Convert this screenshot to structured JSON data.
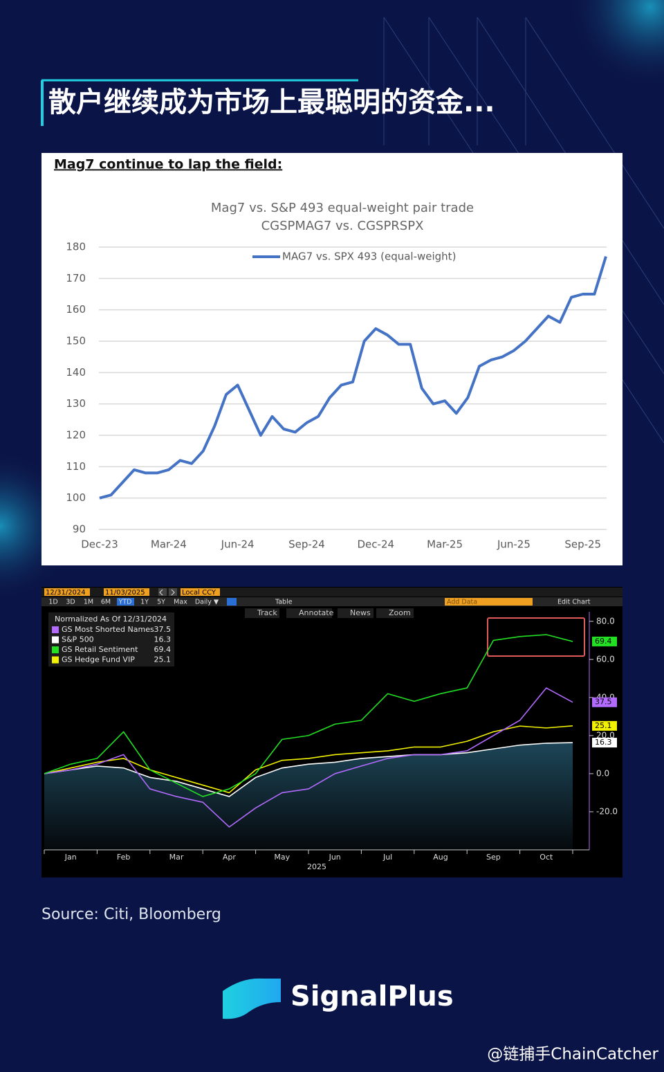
{
  "header": {
    "title": "散户继续成为市场上最聪明的资金..."
  },
  "chart_data": [
    {
      "type": "line",
      "heading": "Mag7 continue to lap the field:",
      "title": "Mag7 vs. S&P 493 equal-weight pair trade",
      "subtitle": "CGSPMAG7 vs. CGSPRSPX",
      "categories": [
        "Dec-23",
        null,
        null,
        null,
        null,
        null,
        "Mar-24",
        null,
        null,
        null,
        null,
        null,
        "Jun-24",
        null,
        null,
        null,
        null,
        null,
        "Sep-24",
        null,
        null,
        null,
        null,
        null,
        "Dec-24",
        null,
        null,
        null,
        null,
        null,
        "Mar-25",
        null,
        null,
        null,
        null,
        null,
        "Jun-25",
        null,
        null,
        null,
        null,
        null,
        "Sep-25",
        null,
        null
      ],
      "series": [
        {
          "name": "MAG7 vs. SPX 493 (equal-weight)",
          "color": "#4472c4",
          "values": [
            100,
            101,
            105,
            109,
            108,
            108,
            109,
            112,
            111,
            115,
            123,
            133,
            136,
            128,
            120,
            126,
            122,
            121,
            124,
            126,
            132,
            136,
            137,
            150,
            154,
            152,
            149,
            149,
            135,
            130,
            131,
            127,
            132,
            142,
            144,
            145,
            147,
            150,
            154,
            158,
            156,
            164,
            165,
            165,
            177
          ]
        }
      ],
      "ylim": [
        90,
        180
      ],
      "yticks": [
        90,
        100,
        110,
        120,
        130,
        140,
        150,
        160,
        170,
        180
      ],
      "grid": true,
      "legend": "top"
    },
    {
      "type": "line",
      "legend_title": "Normalized As Of 12/31/2024",
      "xlabel": "2025",
      "categories": [
        null,
        "Jan",
        null,
        "Feb",
        null,
        "Mar",
        null,
        "Apr",
        null,
        "May",
        null,
        "Jun",
        null,
        "Jul",
        null,
        "Aug",
        null,
        "Sep",
        null,
        "Oct",
        null
      ],
      "series": [
        {
          "name": "GS Most Shorted Names",
          "color": "#b36bff",
          "axis": "y2",
          "values": [
            0,
            2,
            5,
            10,
            -8,
            -12,
            -15,
            -28,
            -18,
            -10,
            -8,
            0,
            4,
            8,
            10,
            10,
            12,
            20,
            28,
            45,
            37.5
          ]
        },
        {
          "name": "S&P 500",
          "color": "#ffffff",
          "axis": "y2",
          "values": [
            0,
            2,
            4,
            3,
            -2,
            -4,
            -8,
            -12,
            -2,
            3,
            5,
            6,
            8,
            9,
            10,
            10,
            11,
            13,
            15,
            16,
            16.3
          ]
        },
        {
          "name": "GS Retail Sentiment",
          "color": "#22e022",
          "axis": "y2",
          "values": [
            0,
            5,
            8,
            22,
            2,
            -5,
            -12,
            -8,
            0,
            18,
            20,
            26,
            28,
            42,
            38,
            42,
            45,
            70,
            72,
            73,
            69.4
          ]
        },
        {
          "name": "GS Hedge Fund VIP",
          "color": "#f2f200",
          "axis": "y2",
          "values": [
            0,
            3,
            6,
            8,
            2,
            -2,
            -6,
            -10,
            2,
            7,
            8,
            10,
            11,
            12,
            14,
            14,
            17,
            22,
            25,
            24,
            25.1
          ]
        }
      ],
      "y2lim": [
        -40,
        85
      ],
      "y2ticks": [
        {
          "value": -20,
          "label": "-20.0"
        },
        {
          "value": 0,
          "label": "0.0"
        },
        {
          "value": 20,
          "label": "20.0"
        },
        {
          "value": 40,
          "label": "40.0"
        },
        {
          "value": 60,
          "label": "60.0"
        },
        {
          "value": 80,
          "label": "80.0"
        }
      ],
      "legend": "top-left"
    }
  ],
  "toolbar": {
    "start_date": "12/31/2024",
    "end_date": "11/03/2025",
    "currency": "Local CCY",
    "ranges": [
      "1D",
      "3D",
      "1M",
      "6M",
      "YTD",
      "1Y",
      "5Y",
      "Max"
    ],
    "frequency": "Daily ▼",
    "table": "Table",
    "add_data": "Add Data",
    "edit_chart": "Edit Chart",
    "tools": [
      "Track",
      "Annotate",
      "News",
      "Zoom"
    ]
  },
  "source": "Source: Citi, Bloomberg",
  "brand": "SignalPlus",
  "watermark": "@链捕手ChainCatcher"
}
